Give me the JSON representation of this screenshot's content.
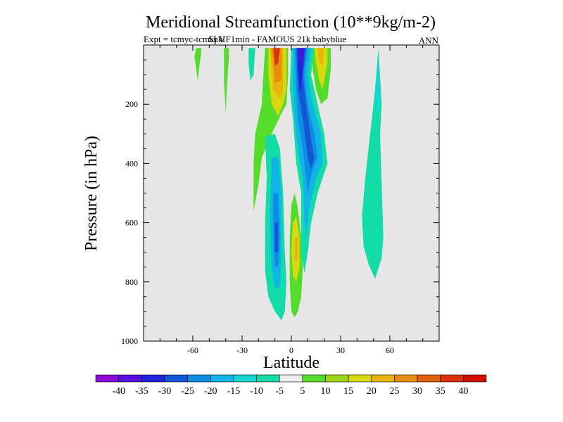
{
  "chart_data": {
    "type": "heatmap",
    "title": "Meridional Streamfunction (10**9kg/m-2)",
    "subtitle_left": "Expt = tcmyc-tcmkj  VF1min - FAMOUS 21k babyblue",
    "subtitle_overprint": "Shkl",
    "subtitle_right": "ANN",
    "xlabel": "Latitude",
    "ylabel": "Pressure (in hPa)",
    "xlim": [
      -90,
      90
    ],
    "ylim": [
      1000,
      0
    ],
    "x_ticks": [
      -60,
      -30,
      0,
      30,
      60
    ],
    "x_tick_labels": [
      "-60",
      "-30",
      "0",
      "30",
      "60"
    ],
    "y_ticks": [
      200,
      400,
      600,
      800,
      1000
    ],
    "y_tick_labels": [
      "200",
      "400",
      "600",
      "800",
      "1000"
    ],
    "colorbar": {
      "levels": [
        "-40",
        "-35",
        "-30",
        "-25",
        "-20",
        "-15",
        "-10",
        "-5",
        "5",
        "10",
        "15",
        "20",
        "25",
        "30",
        "35",
        "40"
      ],
      "colors": [
        "#8b0ad9",
        "#5a0ee0",
        "#2424dc",
        "#1457d6",
        "#0e8ee0",
        "#10b4e6",
        "#12d6d0",
        "#12dca8",
        "#ececec",
        "#54dc2a",
        "#9ed614",
        "#d8d80e",
        "#e6b40c",
        "#e68c0c",
        "#e2600a",
        "#dc320a",
        "#d40c06"
      ]
    },
    "background_color": "#e6e6e6",
    "contour_regions": [
      {
        "name": "north-cell-teal",
        "color": "#12dca8",
        "points": [
          [
            53,
            10
          ],
          [
            55,
            200
          ],
          [
            54,
            300
          ],
          [
            56,
            650
          ],
          [
            55,
            720
          ],
          [
            51,
            790
          ],
          [
            47,
            740
          ],
          [
            44,
            680
          ],
          [
            43,
            580
          ],
          [
            45,
            450
          ],
          [
            48,
            300
          ],
          [
            51,
            150
          ]
        ]
      },
      {
        "name": "north-cell-inner",
        "color": "#12d6d0",
        "points": [
          [
            53,
            20
          ],
          [
            54,
            200
          ],
          [
            52,
            250
          ],
          [
            51,
            150
          ]
        ]
      },
      {
        "name": "south-polar-green",
        "color": "#54dc2a",
        "points": [
          [
            -58,
            10
          ],
          [
            -55,
            10
          ],
          [
            -55,
            30
          ],
          [
            -56,
            70
          ],
          [
            -57,
            120
          ],
          [
            -58,
            80
          ],
          [
            -59,
            40
          ]
        ]
      },
      {
        "name": "south-mid-green",
        "color": "#54dc2a",
        "points": [
          [
            -41,
            10
          ],
          [
            -38,
            10
          ],
          [
            -38,
            40
          ],
          [
            -39,
            120
          ],
          [
            -40,
            230
          ],
          [
            -41,
            120
          ]
        ]
      },
      {
        "name": "teal-strip",
        "color": "#12dca8",
        "points": [
          [
            -26,
            10
          ],
          [
            -22,
            10
          ],
          [
            -23,
            100
          ],
          [
            -25,
            120
          ],
          [
            -26,
            60
          ]
        ]
      },
      {
        "name": "hadley-south-outer",
        "color": "#54dc2a",
        "points": [
          [
            -16,
            10
          ],
          [
            -2,
            10
          ],
          [
            -2,
            100
          ],
          [
            -3,
            200
          ],
          [
            -5,
            220
          ],
          [
            -12,
            300
          ],
          [
            -18,
            380
          ],
          [
            -20,
            470
          ],
          [
            -23,
            560
          ],
          [
            -23,
            400
          ],
          [
            -22,
            300
          ],
          [
            -18,
            200
          ],
          [
            -17,
            100
          ]
        ]
      },
      {
        "name": "hadley-south-yellow",
        "color": "#d8d80e",
        "points": [
          [
            -14,
            10
          ],
          [
            -3,
            10
          ],
          [
            -3,
            150
          ],
          [
            -5,
            200
          ],
          [
            -8,
            240
          ],
          [
            -12,
            200
          ],
          [
            -14,
            100
          ]
        ]
      },
      {
        "name": "hadley-south-orange",
        "color": "#e6b40c",
        "points": [
          [
            -13,
            10
          ],
          [
            -5,
            10
          ],
          [
            -5,
            150
          ],
          [
            -7,
            180
          ],
          [
            -11,
            150
          ],
          [
            -12,
            80
          ]
        ]
      },
      {
        "name": "hadley-south-dkorange",
        "color": "#e68c0c",
        "points": [
          [
            -12,
            10
          ],
          [
            -6,
            10
          ],
          [
            -6,
            120
          ],
          [
            -10,
            130
          ],
          [
            -11,
            60
          ]
        ]
      },
      {
        "name": "hadley-south-red",
        "color": "#dc320a",
        "points": [
          [
            -11,
            10
          ],
          [
            -7,
            10
          ],
          [
            -8,
            60
          ],
          [
            -10,
            70
          ]
        ]
      },
      {
        "name": "north-hadley-green",
        "color": "#54dc2a",
        "points": [
          [
            12,
            10
          ],
          [
            24,
            10
          ],
          [
            24,
            80
          ],
          [
            22,
            180
          ],
          [
            18,
            200
          ],
          [
            15,
            150
          ],
          [
            13,
            80
          ]
        ]
      },
      {
        "name": "north-hadley-yellow",
        "color": "#d8d80e",
        "points": [
          [
            14,
            10
          ],
          [
            22,
            10
          ],
          [
            22,
            60
          ],
          [
            19,
            150
          ],
          [
            17,
            120
          ],
          [
            15,
            60
          ]
        ]
      },
      {
        "name": "north-hadley-orange",
        "color": "#e6b40c",
        "points": [
          [
            16,
            10
          ],
          [
            20,
            10
          ],
          [
            19,
            70
          ],
          [
            17,
            60
          ]
        ]
      },
      {
        "name": "south-descending-cyan",
        "color": "#12dca8",
        "points": [
          [
            -16,
            310
          ],
          [
            -10,
            300
          ],
          [
            -7,
            350
          ],
          [
            -5,
            500
          ],
          [
            -4,
            700
          ],
          [
            -3,
            800
          ],
          [
            -4,
            900
          ],
          [
            -6,
            930
          ],
          [
            -10,
            900
          ],
          [
            -14,
            850
          ],
          [
            -16,
            760
          ],
          [
            -16,
            600
          ],
          [
            -15,
            450
          ]
        ]
      },
      {
        "name": "south-descending-blue1",
        "color": "#10b4e6",
        "points": [
          [
            -12,
            380
          ],
          [
            -8,
            380
          ],
          [
            -6,
            500
          ],
          [
            -6,
            700
          ],
          [
            -7,
            820
          ],
          [
            -10,
            820
          ],
          [
            -12,
            750
          ],
          [
            -13,
            600
          ]
        ]
      },
      {
        "name": "south-descending-blue2",
        "color": "#0e8ee0",
        "points": [
          [
            -11,
            500
          ],
          [
            -8,
            500
          ],
          [
            -7,
            650
          ],
          [
            -8,
            750
          ],
          [
            -10,
            750
          ],
          [
            -11,
            650
          ]
        ]
      },
      {
        "name": "south-descending-blue3",
        "color": "#1457d6",
        "points": [
          [
            -10,
            600
          ],
          [
            -8,
            600
          ],
          [
            -8,
            700
          ],
          [
            -10,
            700
          ]
        ]
      },
      {
        "name": "equator-yellow-outer",
        "color": "#54dc2a",
        "points": [
          [
            0,
            540
          ],
          [
            2,
            500
          ],
          [
            4,
            550
          ],
          [
            6,
            650
          ],
          [
            7,
            750
          ],
          [
            6,
            850
          ],
          [
            4,
            900
          ],
          [
            2,
            920
          ],
          [
            0,
            900
          ],
          [
            -1,
            800
          ],
          [
            -1,
            650
          ]
        ]
      },
      {
        "name": "equator-yellow",
        "color": "#d8d80e",
        "points": [
          [
            1,
            600
          ],
          [
            3,
            580
          ],
          [
            5,
            650
          ],
          [
            5,
            750
          ],
          [
            3,
            800
          ],
          [
            1,
            780
          ],
          [
            0,
            700
          ]
        ]
      },
      {
        "name": "equator-orange",
        "color": "#e6b40c",
        "points": [
          [
            2,
            650
          ],
          [
            4,
            650
          ],
          [
            4,
            730
          ],
          [
            2,
            730
          ]
        ]
      },
      {
        "name": "north-descending-cyan",
        "color": "#12dca8",
        "points": [
          [
            0,
            10
          ],
          [
            14,
            10
          ],
          [
            12,
            100
          ],
          [
            16,
            200
          ],
          [
            20,
            300
          ],
          [
            22,
            400
          ],
          [
            16,
            500
          ],
          [
            12,
            600
          ],
          [
            10,
            700
          ],
          [
            8,
            770
          ],
          [
            6,
            700
          ],
          [
            6,
            500
          ],
          [
            3,
            400
          ],
          [
            1,
            250
          ],
          [
            -1,
            150
          ]
        ]
      },
      {
        "name": "north-descending-blue1",
        "color": "#10b4e6",
        "points": [
          [
            1,
            10
          ],
          [
            12,
            10
          ],
          [
            10,
            100
          ],
          [
            13,
            200
          ],
          [
            18,
            300
          ],
          [
            19,
            400
          ],
          [
            15,
            450
          ],
          [
            11,
            550
          ],
          [
            9,
            650
          ],
          [
            8,
            600
          ],
          [
            7,
            450
          ],
          [
            4,
            350
          ],
          [
            2,
            250
          ],
          [
            1,
            150
          ]
        ]
      },
      {
        "name": "north-descending-blue2",
        "color": "#0e8ee0",
        "points": [
          [
            2,
            10
          ],
          [
            10,
            10
          ],
          [
            8,
            100
          ],
          [
            10,
            200
          ],
          [
            14,
            300
          ],
          [
            16,
            380
          ],
          [
            13,
            420
          ],
          [
            10,
            500
          ],
          [
            9,
            450
          ],
          [
            7,
            350
          ],
          [
            4,
            250
          ],
          [
            3,
            150
          ]
        ]
      },
      {
        "name": "north-descending-blue3",
        "color": "#1457d6",
        "points": [
          [
            3,
            10
          ],
          [
            9,
            10
          ],
          [
            7,
            100
          ],
          [
            9,
            200
          ],
          [
            12,
            320
          ],
          [
            14,
            380
          ],
          [
            12,
            420
          ],
          [
            10,
            380
          ],
          [
            7,
            250
          ],
          [
            4,
            150
          ]
        ]
      },
      {
        "name": "north-descending-blue4",
        "color": "#2424dc",
        "points": [
          [
            4,
            10
          ],
          [
            8,
            10
          ],
          [
            7,
            80
          ],
          [
            6,
            150
          ],
          [
            5,
            150
          ],
          [
            4,
            80
          ]
        ]
      },
      {
        "name": "north-descending-purple",
        "color": "#5a0ee0",
        "points": [
          [
            5,
            10
          ],
          [
            7,
            10
          ],
          [
            6,
            60
          ],
          [
            5,
            60
          ]
        ]
      }
    ]
  }
}
